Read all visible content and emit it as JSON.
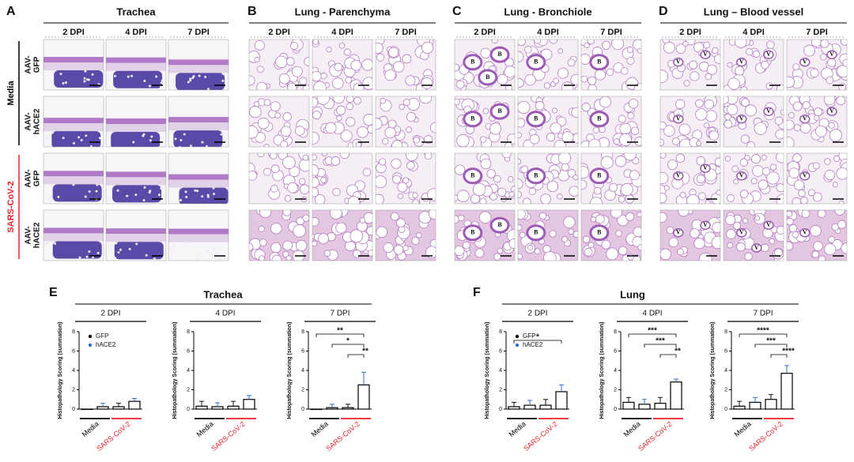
{
  "panels_top": [
    {
      "letter": "A",
      "title": "Trachea",
      "columns": [
        "2 DPI",
        "4 DPI",
        "7 DPI"
      ],
      "row_labels": [
        [
          "AAV-",
          "GFP"
        ],
        [
          "AAV-",
          "hACE2"
        ],
        [
          "AAV-",
          "GFP"
        ],
        [
          "AAV-",
          "hACE2"
        ]
      ],
      "groups": [
        {
          "label": "Media",
          "color": "#000000"
        },
        {
          "label": "SARS-CoV-2",
          "color": "#e8232a"
        }
      ]
    },
    {
      "letter": "B",
      "title": "Lung - Parenchyma",
      "columns": [
        "2 DPI",
        "4 DPI",
        "7 DPI"
      ]
    },
    {
      "letter": "C",
      "title": "Lung - Bronchiole",
      "columns": [
        "2 DPI",
        "4 DPI",
        "7 DPI"
      ],
      "markers": [
        [
          [
            "B",
            "B",
            "B"
          ],
          [
            "B"
          ],
          [
            "B"
          ]
        ],
        [
          [
            "B",
            "B"
          ],
          [
            "B"
          ],
          [
            "B"
          ]
        ],
        [
          [
            "B"
          ],
          [
            "B"
          ],
          [
            "B"
          ]
        ],
        [
          [
            "B",
            "B"
          ],
          [
            "B"
          ],
          [
            "B"
          ]
        ]
      ]
    },
    {
      "letter": "D",
      "title": "Lung – Blood vessel",
      "columns": [
        "2 DPI",
        "4 DPI",
        "7 DPI"
      ],
      "markers": [
        [
          [
            "V",
            "V"
          ],
          [
            "V",
            "V"
          ],
          [
            "V",
            "V"
          ]
        ],
        [
          [
            "V"
          ],
          [
            "V",
            "V"
          ],
          [
            "V",
            "V"
          ]
        ],
        [
          [
            "V",
            "V"
          ],
          [
            "V"
          ],
          [
            "V"
          ]
        ],
        [
          [
            "V",
            "V"
          ],
          [
            "V",
            "V",
            "V"
          ],
          [
            "V"
          ]
        ]
      ]
    }
  ],
  "panels_bottom": [
    {
      "letter": "E",
      "title": "Trachea"
    },
    {
      "letter": "F",
      "title": "Lung"
    }
  ],
  "chart_data": [
    {
      "type": "bar",
      "title": "2 DPI",
      "ylabel": "Histopathology Scoring (summation)",
      "legend": true,
      "groups": [
        {
          "label": "Media",
          "color": "#000000"
        },
        {
          "label": "SARS-CoV-2",
          "color": "#e8232a"
        }
      ],
      "series": [
        {
          "name": "GFP",
          "color": "#111111",
          "values": [
            0,
            0.25
          ],
          "errors": [
            0,
            0.35
          ]
        },
        {
          "name": "hACE2",
          "color": "#2f6fd6",
          "values": [
            0.25,
            0.8
          ],
          "errors": [
            0.35,
            0.3
          ]
        }
      ],
      "ylim": [
        0,
        8
      ],
      "yticks": [
        0,
        2,
        4,
        6,
        8
      ],
      "significance": []
    },
    {
      "type": "bar",
      "title": "4 DPI",
      "ylabel": "Histopathology Scoring (summation)",
      "legend": false,
      "groups": [
        {
          "label": "Media",
          "color": "#000000"
        },
        {
          "label": "SARS-CoV-2",
          "color": "#e8232a"
        }
      ],
      "series": [
        {
          "color": "#111111",
          "values": [
            0.3,
            0.3
          ],
          "errors": [
            0.5,
            0.5
          ]
        },
        {
          "color": "#2f6fd6",
          "values": [
            0.25,
            1.0
          ],
          "errors": [
            0.4,
            0.4
          ]
        }
      ],
      "ylim": [
        0,
        8
      ],
      "yticks": [
        0,
        2,
        4,
        6,
        8
      ],
      "significance": []
    },
    {
      "type": "bar",
      "title": "7 DPI",
      "ylabel": "Histopathology Scoring (summation)",
      "legend": false,
      "groups": [
        {
          "label": "Media",
          "color": "#000000"
        },
        {
          "label": "SARS-CoV-2",
          "color": "#e8232a"
        }
      ],
      "series": [
        {
          "color": "#111111",
          "values": [
            0,
            0.15
          ],
          "errors": [
            0,
            0.35
          ]
        },
        {
          "color": "#2f6fd6",
          "values": [
            0.15,
            2.5
          ],
          "errors": [
            0.35,
            1.3
          ]
        }
      ],
      "ylim": [
        0,
        8
      ],
      "yticks": [
        0,
        2,
        4,
        6,
        8
      ],
      "significance": [
        "**",
        "*",
        "**"
      ]
    },
    {
      "type": "bar",
      "title": "2 DPI",
      "ylabel": "Histopathology Scoring (summation)",
      "legend": true,
      "groups": [
        {
          "label": "Media",
          "color": "#000000"
        },
        {
          "label": "SARS-CoV-2",
          "color": "#e8232a"
        }
      ],
      "series": [
        {
          "name": "GFP",
          "color": "#111111",
          "values": [
            0.25,
            0.4
          ],
          "errors": [
            0.45,
            0.6
          ]
        },
        {
          "name": "hACE2",
          "color": "#2f6fd6",
          "values": [
            0.4,
            1.8
          ],
          "errors": [
            0.5,
            0.7
          ]
        }
      ],
      "ylim": [
        0,
        8
      ],
      "yticks": [
        0,
        2,
        4,
        6,
        8
      ],
      "significance": [
        "*"
      ]
    },
    {
      "type": "bar",
      "title": "4 DPI",
      "ylabel": "Histopathology Scoring (summation)",
      "legend": false,
      "groups": [
        {
          "label": "Media",
          "color": "#000000"
        },
        {
          "label": "SARS-CoV-2",
          "color": "#e8232a"
        }
      ],
      "series": [
        {
          "color": "#111111",
          "values": [
            0.7,
            0.6
          ],
          "errors": [
            0.5,
            0.6
          ]
        },
        {
          "color": "#2f6fd6",
          "values": [
            0.5,
            2.8
          ],
          "errors": [
            0.5,
            0.3
          ]
        }
      ],
      "ylim": [
        0,
        8
      ],
      "yticks": [
        0,
        2,
        4,
        6,
        8
      ],
      "significance": [
        "***",
        "***",
        "**"
      ]
    },
    {
      "type": "bar",
      "title": "7 DPI",
      "ylabel": "Histopathology Scoring (summation)",
      "legend": false,
      "groups": [
        {
          "label": "Media",
          "color": "#000000"
        },
        {
          "label": "SARS-CoV-2",
          "color": "#e8232a"
        }
      ],
      "series": [
        {
          "color": "#111111",
          "values": [
            0.3,
            1.0
          ],
          "errors": [
            0.5,
            0.5
          ]
        },
        {
          "color": "#2f6fd6",
          "values": [
            0.7,
            3.7
          ],
          "errors": [
            0.5,
            0.8
          ]
        }
      ],
      "ylim": [
        0,
        8
      ],
      "yticks": [
        0,
        2,
        4,
        6,
        8
      ],
      "significance": [
        "****",
        "***",
        "****"
      ]
    }
  ]
}
